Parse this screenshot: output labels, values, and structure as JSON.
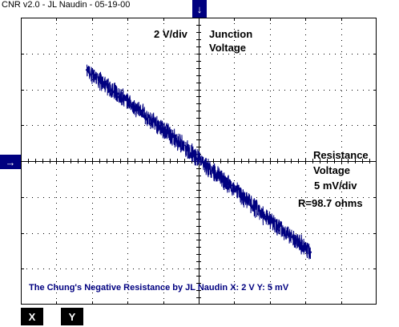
{
  "header": {
    "title": "CNR v2.0 - JL Naudin - 05-19-00"
  },
  "markers": {
    "top": "↓",
    "left": "→"
  },
  "annotations": {
    "x_scale": "2 V/div",
    "x_name_line1": "Junction",
    "x_name_line2": "Voltage",
    "y_name_line1": "Resistance",
    "y_name_line2": "Voltage",
    "y_scale": "5 mV/div",
    "resistance": "R=98.7 ohms"
  },
  "footer": {
    "caption": "The Chung's Negative Resistance by JL Naudin X: 2  V Y: 5 mV"
  },
  "buttons": {
    "x": "X",
    "y": "Y"
  },
  "colors": {
    "trace": "#000080",
    "marker": "#000080",
    "grid": "#000000"
  },
  "chart_data": {
    "type": "scatter",
    "x_units_per_div": 2,
    "y_units_per_div": 5,
    "xlabel": "Junction Voltage",
    "ylabel": "Resistance Voltage",
    "xlim": [
      -10,
      10
    ],
    "ylim": [
      -20,
      20
    ],
    "grid": true,
    "series": [
      {
        "x": [
          -6.3,
          -4.0,
          -2.0,
          0.0,
          2.0,
          4.0,
          6.3
        ],
        "y": [
          12.7,
          8.3,
          4.4,
          0.3,
          -4.0,
          -8.3,
          -12.7
        ]
      }
    ]
  }
}
